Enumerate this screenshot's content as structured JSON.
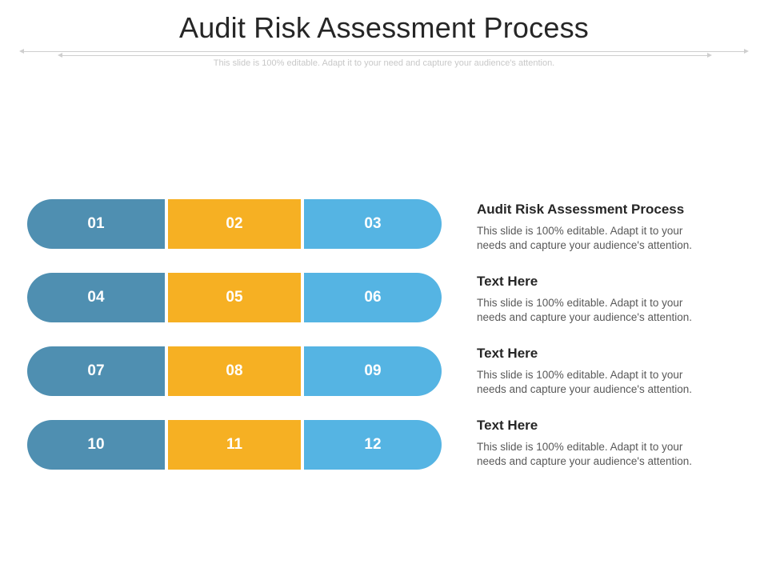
{
  "slide": {
    "title": "Audit Risk Assessment Process",
    "subtitle": "This slide is 100% editable. Adapt it to your need and capture your audience's attention."
  },
  "grid": {
    "rows": [
      {
        "cells": [
          "01",
          "02",
          "03"
        ]
      },
      {
        "cells": [
          "04",
          "05",
          "06"
        ]
      },
      {
        "cells": [
          "07",
          "08",
          "09"
        ]
      },
      {
        "cells": [
          "10",
          "11",
          "12"
        ]
      }
    ],
    "colors": {
      "column1": "#4f8fb1",
      "column2": "#f6b023",
      "column3": "#55b4e3"
    }
  },
  "items": [
    {
      "title": "Audit Risk Assessment Process",
      "line1": "This slide is 100% editable. Adapt it to your",
      "line2": "needs and capture your audience's attention."
    },
    {
      "title": "Text Here",
      "line1": "This slide is 100% editable. Adapt it to your",
      "line2": "needs and capture your audience's attention."
    },
    {
      "title": "Text Here",
      "line1": "This slide is 100% editable. Adapt it to your",
      "line2": "needs and capture your audience's attention."
    },
    {
      "title": "Text Here",
      "line1": "This slide is 100% editable. Adapt it to your",
      "line2": "needs and capture your audience's attention."
    }
  ]
}
